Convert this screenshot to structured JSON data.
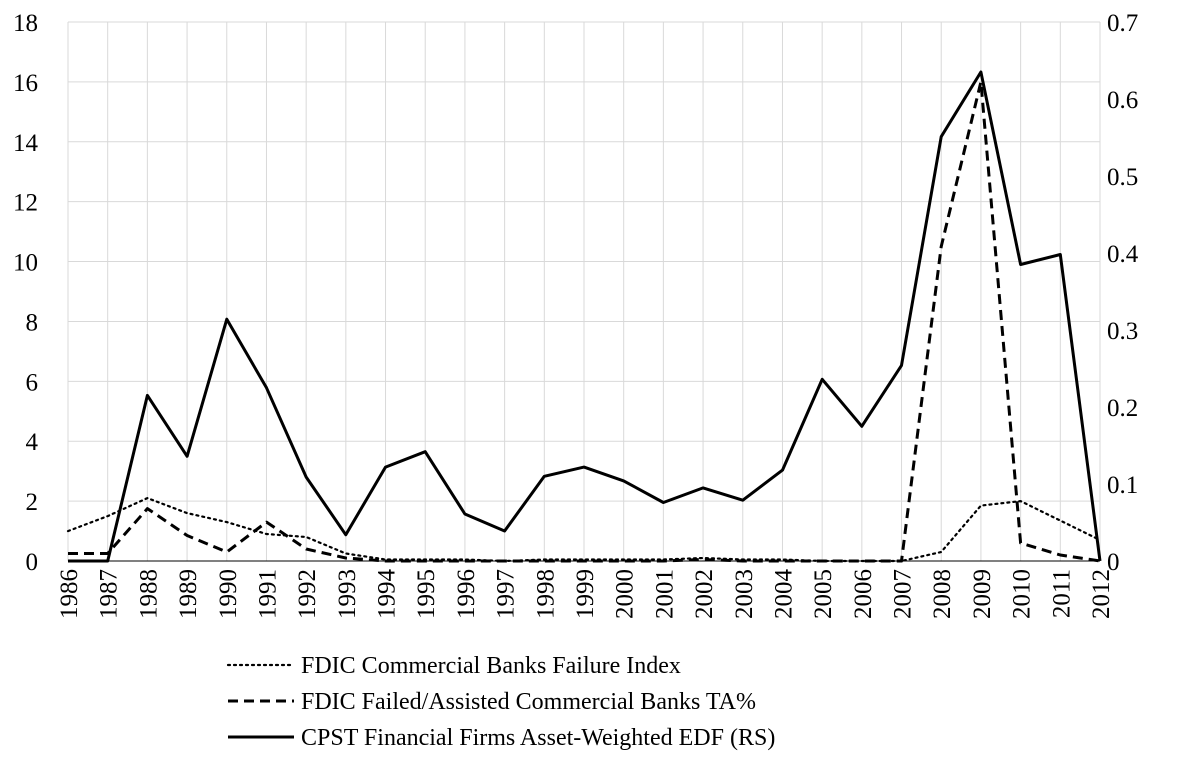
{
  "chart_data": {
    "type": "line",
    "title": "",
    "xlabel": "",
    "ylabel": "",
    "y2label": "",
    "grid": true,
    "legend_position": "bottom",
    "x": [
      "1986",
      "1987",
      "1988",
      "1989",
      "1990",
      "1991",
      "1992",
      "1993",
      "1994",
      "1995",
      "1996",
      "1997",
      "1998",
      "1999",
      "2000",
      "2001",
      "2002",
      "2003",
      "2004",
      "2005",
      "2006",
      "2007",
      "2008",
      "2009",
      "2010",
      "2011",
      "2012"
    ],
    "ylim": [
      0,
      18
    ],
    "y_ticks": [
      "0",
      "2",
      "4",
      "6",
      "8",
      "10",
      "12",
      "14",
      "16",
      "18"
    ],
    "y2lim": [
      0,
      0.7
    ],
    "y2_ticks": [
      "0",
      "0.1",
      "0.2",
      "0.3",
      "0.4",
      "0.5",
      "0.6",
      "0.7"
    ],
    "series": [
      {
        "name": "FDIC Commercial Banks Failure Index",
        "axis": "left",
        "style": "dotted",
        "values": [
          1.0,
          1.5,
          2.1,
          1.6,
          1.3,
          0.9,
          0.8,
          0.25,
          0.05,
          0.05,
          0.05,
          0.0,
          0.05,
          0.05,
          0.05,
          0.05,
          0.1,
          0.05,
          0.05,
          0.0,
          0.0,
          0.0,
          0.3,
          1.85,
          2.0,
          1.35,
          0.7
        ]
      },
      {
        "name": "FDIC Failed/Assisted Commercial Banks TA%",
        "axis": "left",
        "style": "dashed",
        "values": [
          0.25,
          0.25,
          1.75,
          0.85,
          0.3,
          1.3,
          0.4,
          0.1,
          0.0,
          0.0,
          0.0,
          0.0,
          0.0,
          0.0,
          0.0,
          0.0,
          0.05,
          0.0,
          0.0,
          0.0,
          0.0,
          0.0,
          10.5,
          16.0,
          0.6,
          0.2,
          0.0
        ]
      },
      {
        "name": "CPST Financial Firms Asset-Weighted EDF (RS)",
        "axis": "right",
        "style": "solid",
        "values": [
          0.0,
          0.0,
          0.215,
          0.136,
          0.314,
          0.225,
          0.109,
          0.034,
          0.122,
          0.142,
          0.061,
          0.039,
          0.11,
          0.122,
          0.104,
          0.076,
          0.095,
          0.079,
          0.118,
          0.236,
          0.175,
          0.254,
          0.551,
          0.635,
          0.385,
          0.398,
          0.0
        ]
      }
    ]
  }
}
